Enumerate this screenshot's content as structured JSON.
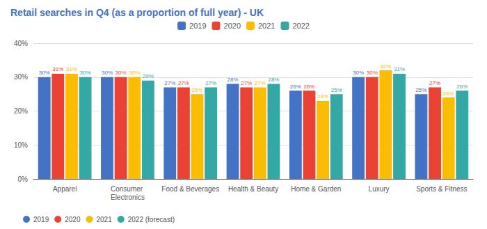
{
  "chart_data": {
    "type": "bar",
    "title": "Retail searches in Q4 (as a proportion of full year) - UK",
    "categories": [
      "Apparel",
      "Consumer Electronics",
      "Food & Beverages",
      "Health & Beauty",
      "Home & Garden",
      "Luxury",
      "Sports & Fitness"
    ],
    "series": [
      {
        "name": "2019",
        "color": "#4472C4",
        "values": [
          30,
          30,
          27,
          28,
          26,
          30,
          25
        ],
        "value_labels": [
          "30%",
          "30%",
          "27%",
          "28%",
          "26%",
          "30%",
          "25%"
        ]
      },
      {
        "name": "2020",
        "color": "#EA4335",
        "values": [
          31,
          30,
          27,
          27,
          26,
          30,
          27
        ],
        "value_labels": [
          "31%",
          "30%",
          "27%",
          "27%",
          "26%",
          "30%",
          "27%"
        ]
      },
      {
        "name": "2021",
        "color": "#FBBC04",
        "values": [
          31,
          30,
          25,
          27,
          23,
          32,
          24
        ],
        "value_labels": [
          "31%",
          "30%",
          "25%",
          "27%",
          "23%",
          "32%",
          "24%"
        ]
      },
      {
        "name": "2022",
        "color": "#34A8A4",
        "values": [
          30,
          29,
          27,
          28,
          25,
          31,
          26
        ],
        "value_labels": [
          "30%",
          "29%",
          "27%",
          "28%",
          "25%",
          "31%",
          "26%"
        ]
      }
    ],
    "second_legend": [
      "2019",
      "2020",
      "2021",
      "2022 (forecast)"
    ],
    "ylim": [
      0,
      40
    ],
    "yticks": [
      {
        "value": 0,
        "label": "0%"
      },
      {
        "value": 10,
        "label": "10%"
      },
      {
        "value": 20,
        "label": "20%"
      },
      {
        "value": 30,
        "label": "30%"
      },
      {
        "value": 40,
        "label": "40%"
      }
    ],
    "grid": true,
    "legend": "top",
    "data_labels": true
  }
}
